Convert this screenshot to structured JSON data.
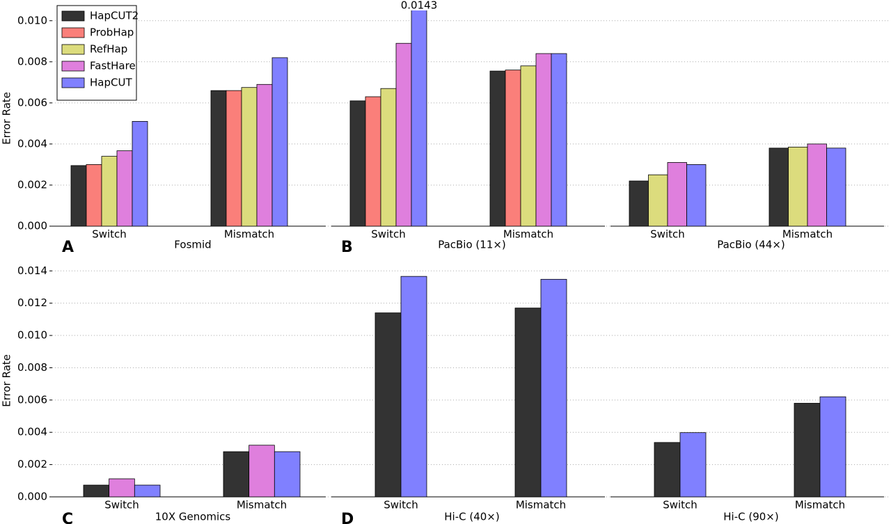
{
  "chart_data": [
    {
      "type": "bar",
      "ylabel": "Error Rate",
      "ylim": [
        0,
        0.0105
      ],
      "yticks": [
        {
          "value": 0,
          "label": "0.000"
        },
        0.002,
        0.004,
        0.006,
        0.008,
        {
          "value": 0.01,
          "label": "0.010"
        }
      ],
      "grid": true,
      "legend": "upper left",
      "panels": [
        {
          "letter": "A",
          "title": "Fosmid",
          "categories": [
            "Switch",
            "Mismatch"
          ],
          "series": [
            {
              "name": "HapCUT2",
              "color": "#333333",
              "values": [
                0.00295,
                0.0066
              ]
            },
            {
              "name": "ProbHap",
              "color": "#fa7f7a",
              "values": [
                0.003,
                0.0066
              ]
            },
            {
              "name": "RefHap",
              "color": "#dcdc7d",
              "values": [
                0.0034,
                0.00675
              ]
            },
            {
              "name": "FastHare",
              "color": "#df7fdd",
              "values": [
                0.00367,
                0.0069
              ]
            },
            {
              "name": "HapCUT",
              "color": "#8080ff",
              "values": [
                0.0051,
                0.0082
              ]
            }
          ]
        },
        {
          "letter": "B",
          "title": "PacBio (11×)",
          "categories": [
            "Switch",
            "Mismatch"
          ],
          "series": [
            {
              "name": "HapCUT2",
              "color": "#333333",
              "values": [
                0.0061,
                0.00755
              ]
            },
            {
              "name": "ProbHap",
              "color": "#fa7f7a",
              "values": [
                0.0063,
                0.0076
              ]
            },
            {
              "name": "RefHap",
              "color": "#dcdc7d",
              "values": [
                0.0067,
                0.0078
              ]
            },
            {
              "name": "FastHare",
              "color": "#df7fdd",
              "values": [
                0.0089,
                0.0084
              ]
            },
            {
              "name": "HapCUT",
              "color": "#8080ff",
              "values": [
                0.0143,
                0.0084
              ],
              "value_labels": [
                "0.0143",
                null
              ]
            }
          ]
        },
        {
          "title": "PacBio (44×)",
          "categories": [
            "Switch",
            "Mismatch"
          ],
          "series": [
            {
              "name": "HapCUT2",
              "color": "#333333",
              "values": [
                0.0022,
                0.0038
              ]
            },
            {
              "name": "RefHap",
              "color": "#dcdc7d",
              "values": [
                0.0025,
                0.00385
              ]
            },
            {
              "name": "FastHare",
              "color": "#df7fdd",
              "values": [
                0.0031,
                0.004
              ]
            },
            {
              "name": "HapCUT",
              "color": "#8080ff",
              "values": [
                0.003,
                0.0038
              ]
            }
          ]
        }
      ]
    },
    {
      "type": "bar",
      "ylabel": "Error Rate",
      "ylim": [
        0,
        0.0144
      ],
      "yticks": [
        {
          "value": 0,
          "label": "0.000"
        },
        0.002,
        0.004,
        0.006,
        0.008,
        {
          "value": 0.01,
          "label": "0.010"
        },
        0.012,
        0.014
      ],
      "grid": true,
      "panels": [
        {
          "letter": "C",
          "title": "10X Genomics",
          "categories": [
            "Switch",
            "Mismatch"
          ],
          "series": [
            {
              "name": "HapCUT2",
              "color": "#333333",
              "values": [
                0.00073,
                0.0028
              ]
            },
            {
              "name": "FastHare",
              "color": "#df7fdd",
              "values": [
                0.00112,
                0.0032
              ]
            },
            {
              "name": "HapCUT",
              "color": "#8080ff",
              "values": [
                0.00073,
                0.0028
              ]
            }
          ]
        },
        {
          "letter": "D",
          "title": "Hi-C (40×)",
          "categories": [
            "Switch",
            "Mismatch"
          ],
          "series": [
            {
              "name": "HapCUT2",
              "color": "#333333",
              "values": [
                0.0114,
                0.0117
              ]
            },
            {
              "name": "HapCUT",
              "color": "#8080ff",
              "values": [
                0.01366,
                0.01348
              ]
            }
          ]
        },
        {
          "title": "Hi-C (90×)",
          "categories": [
            "Switch",
            "Mismatch"
          ],
          "series": [
            {
              "name": "HapCUT2",
              "color": "#333333",
              "values": [
                0.00337,
                0.0058
              ]
            },
            {
              "name": "HapCUT",
              "color": "#8080ff",
              "values": [
                0.00398,
                0.0062
              ]
            }
          ]
        }
      ]
    }
  ]
}
